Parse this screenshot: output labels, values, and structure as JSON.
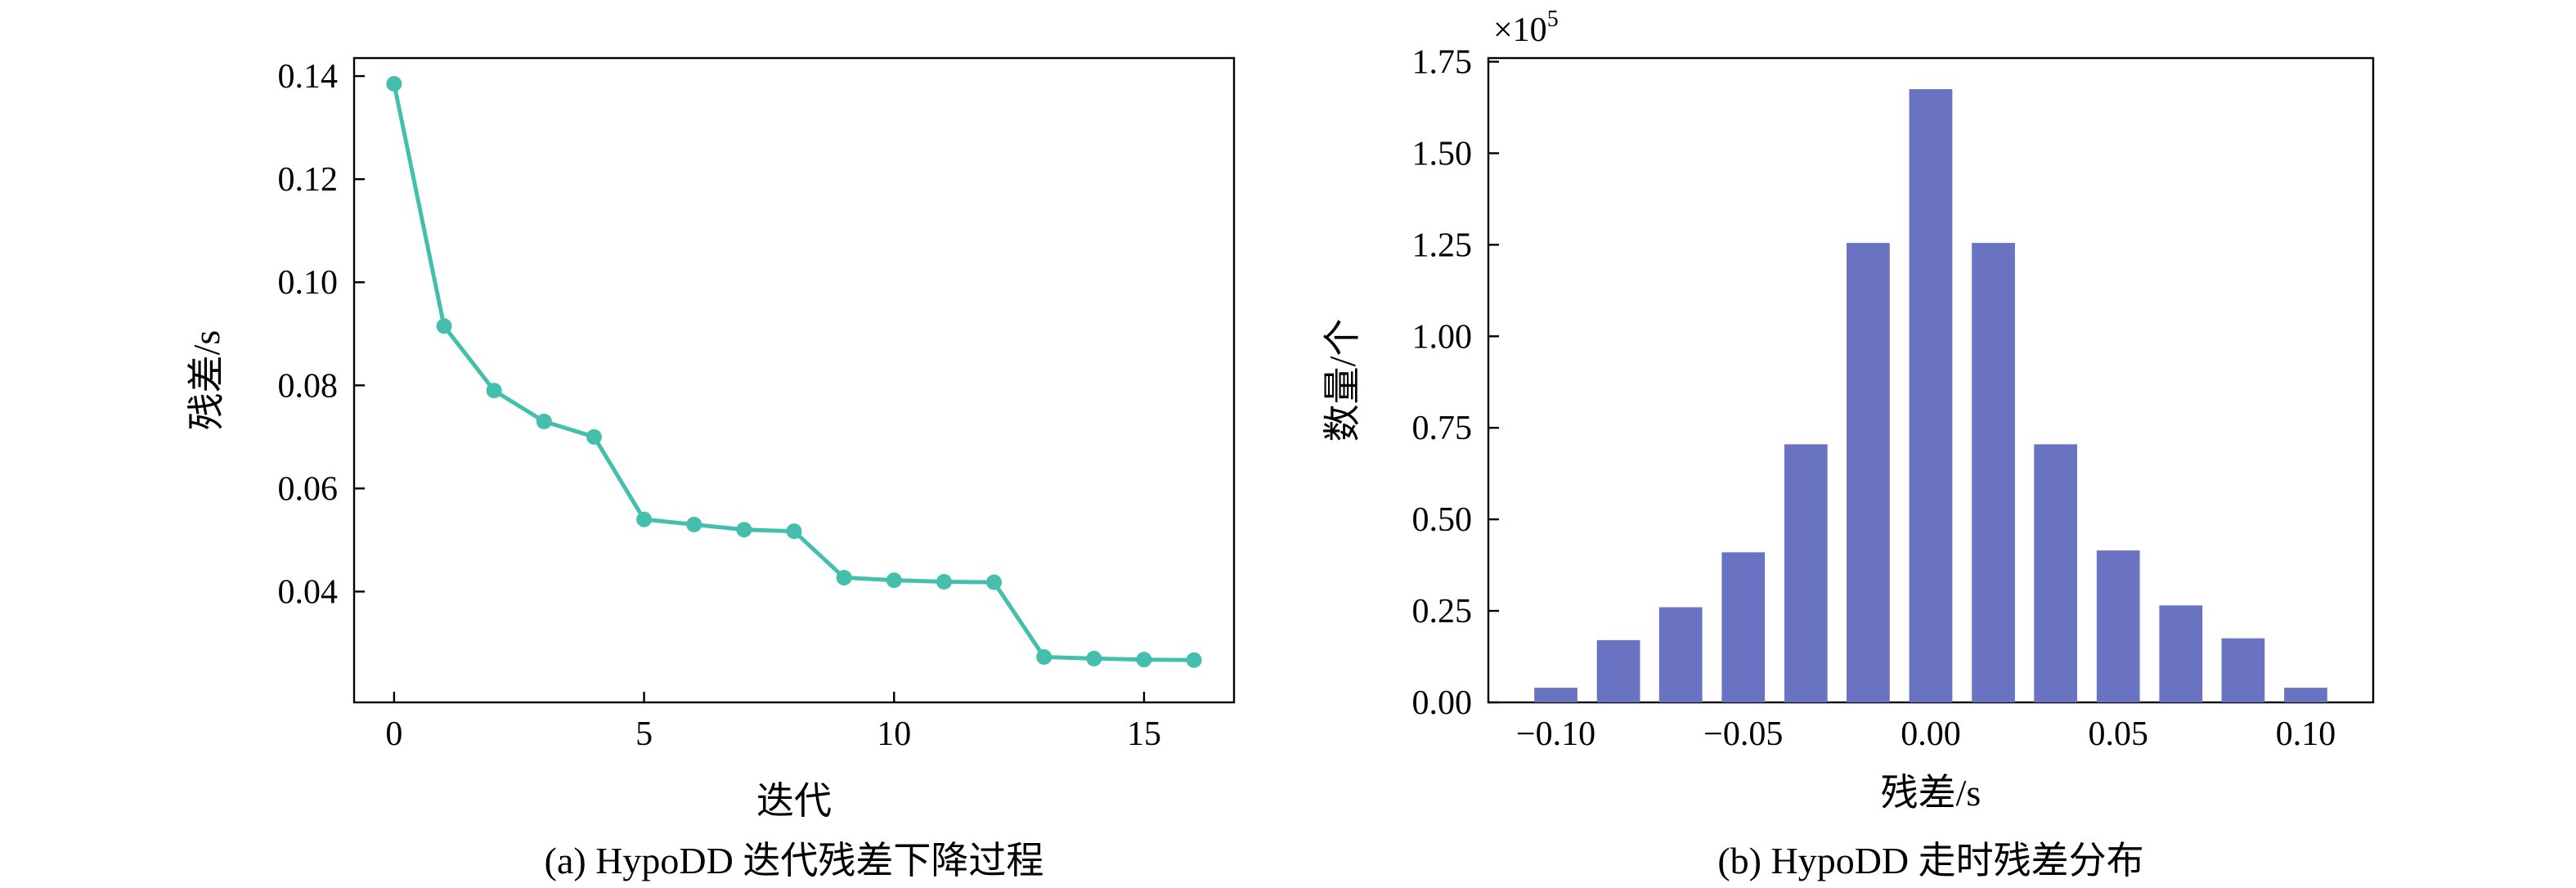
{
  "chart_data": [
    {
      "type": "line",
      "caption": "(a) HypoDD 迭代残差下降过程",
      "xlabel": "迭代",
      "ylabel": "残差/s",
      "xlim": [
        -0.8,
        16.8
      ],
      "ylim": [
        0.0185,
        0.1435
      ],
      "xticks": [
        0,
        5,
        10,
        15
      ],
      "xtick_labels": [
        "0",
        "5",
        "10",
        "15"
      ],
      "yticks": [
        0.04,
        0.06,
        0.08,
        0.1,
        0.12,
        0.14
      ],
      "ytick_labels": [
        "0.04",
        "0.06",
        "0.08",
        "0.10",
        "0.12",
        "0.14"
      ],
      "color": "#45bfad",
      "series": [
        {
          "x": [
            0,
            1,
            2,
            3,
            4,
            5,
            6,
            7,
            8,
            9,
            10,
            11,
            12,
            13,
            14,
            15,
            16
          ],
          "y": [
            0.1385,
            0.0915,
            0.079,
            0.073,
            0.07,
            0.054,
            0.053,
            0.052,
            0.0517,
            0.0427,
            0.0422,
            0.0419,
            0.0418,
            0.0273,
            0.027,
            0.0268,
            0.0267
          ]
        }
      ]
    },
    {
      "type": "bar",
      "caption": "(b) HypoDD 走时残差分布",
      "xlabel": "残差/s",
      "ylabel": "数量/个",
      "y_multiplier_label": "×10",
      "y_multiplier_exp": "5",
      "xlim": [
        -0.118,
        0.118
      ],
      "ylim": [
        0,
        1.76
      ],
      "xticks": [
        -0.1,
        -0.05,
        0.0,
        0.05,
        0.1
      ],
      "xtick_labels": [
        "−0.10",
        "−0.05",
        "0.00",
        "0.05",
        "0.10"
      ],
      "yticks": [
        0,
        0.25,
        0.5,
        0.75,
        1.0,
        1.25,
        1.5,
        1.75
      ],
      "ytick_labels": [
        "0.00",
        "0.25",
        "0.50",
        "0.75",
        "1.00",
        "1.25",
        "1.50",
        "1.75"
      ],
      "color": "#6a72c2",
      "bar_width": 0.0115,
      "x": [
        -0.1,
        -0.0833,
        -0.0667,
        -0.05,
        -0.0333,
        -0.0167,
        0.0,
        0.0167,
        0.0333,
        0.05,
        0.0667,
        0.0833,
        0.1
      ],
      "values": [
        0.04,
        0.17,
        0.26,
        0.41,
        0.705,
        1.255,
        1.675,
        1.255,
        0.705,
        0.415,
        0.265,
        0.175,
        0.04
      ]
    }
  ]
}
